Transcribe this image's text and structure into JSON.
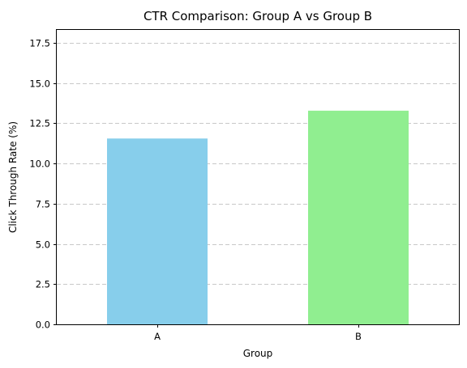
{
  "chart_data": {
    "type": "bar",
    "title": "CTR Comparison: Group A vs Group B",
    "xlabel": "Group",
    "ylabel": "Click Through Rate (%)",
    "categories": [
      "A",
      "B"
    ],
    "values": [
      11.55,
      13.28
    ],
    "colors": [
      "#87ceeb",
      "#90ee90"
    ],
    "ylim": [
      0,
      18.3
    ],
    "yticks": [
      "0.0",
      "2.5",
      "5.0",
      "7.5",
      "10.0",
      "12.5",
      "15.0",
      "17.5"
    ],
    "grid": "y-dashed",
    "legend": "none"
  }
}
